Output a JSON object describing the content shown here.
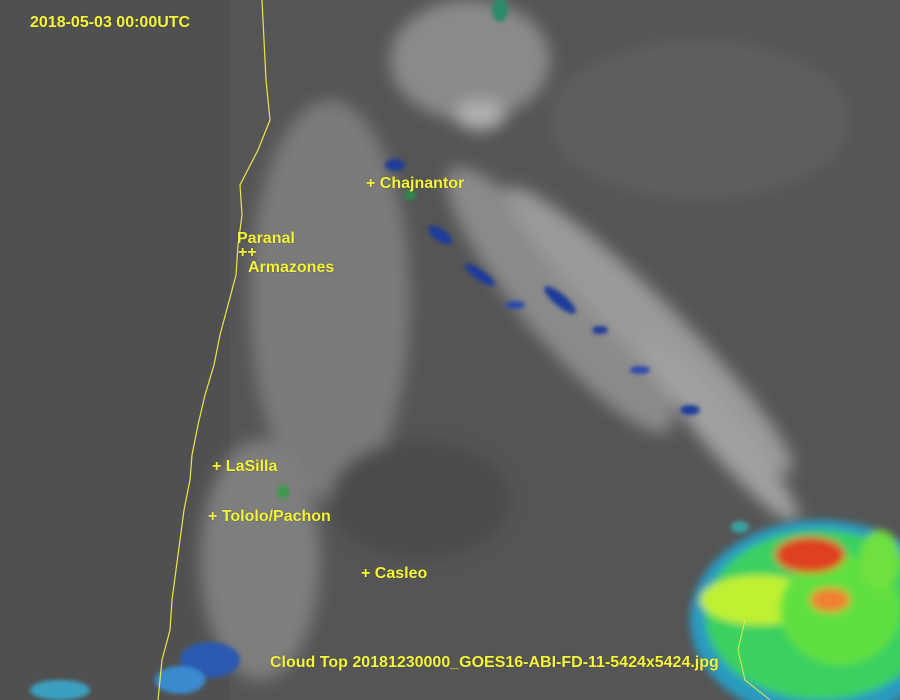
{
  "timestamp": "2018-05-03 00:00UTC",
  "caption": "Cloud Top 20181230000_GOES16-ABI-FD-11-5424x5424.jpg",
  "sites": [
    {
      "label": "+ Chajnantor"
    },
    {
      "label": "Paranal"
    },
    {
      "label": "++"
    },
    {
      "label": "Armazones"
    },
    {
      "label": "+ LaSilla"
    },
    {
      "label": "+ Tololo/Pachon"
    },
    {
      "label": "+ Casleo"
    }
  ],
  "colors": {
    "label": "#f5f53a",
    "coastline": "#e8e84a",
    "background": "#5a5a5a"
  }
}
